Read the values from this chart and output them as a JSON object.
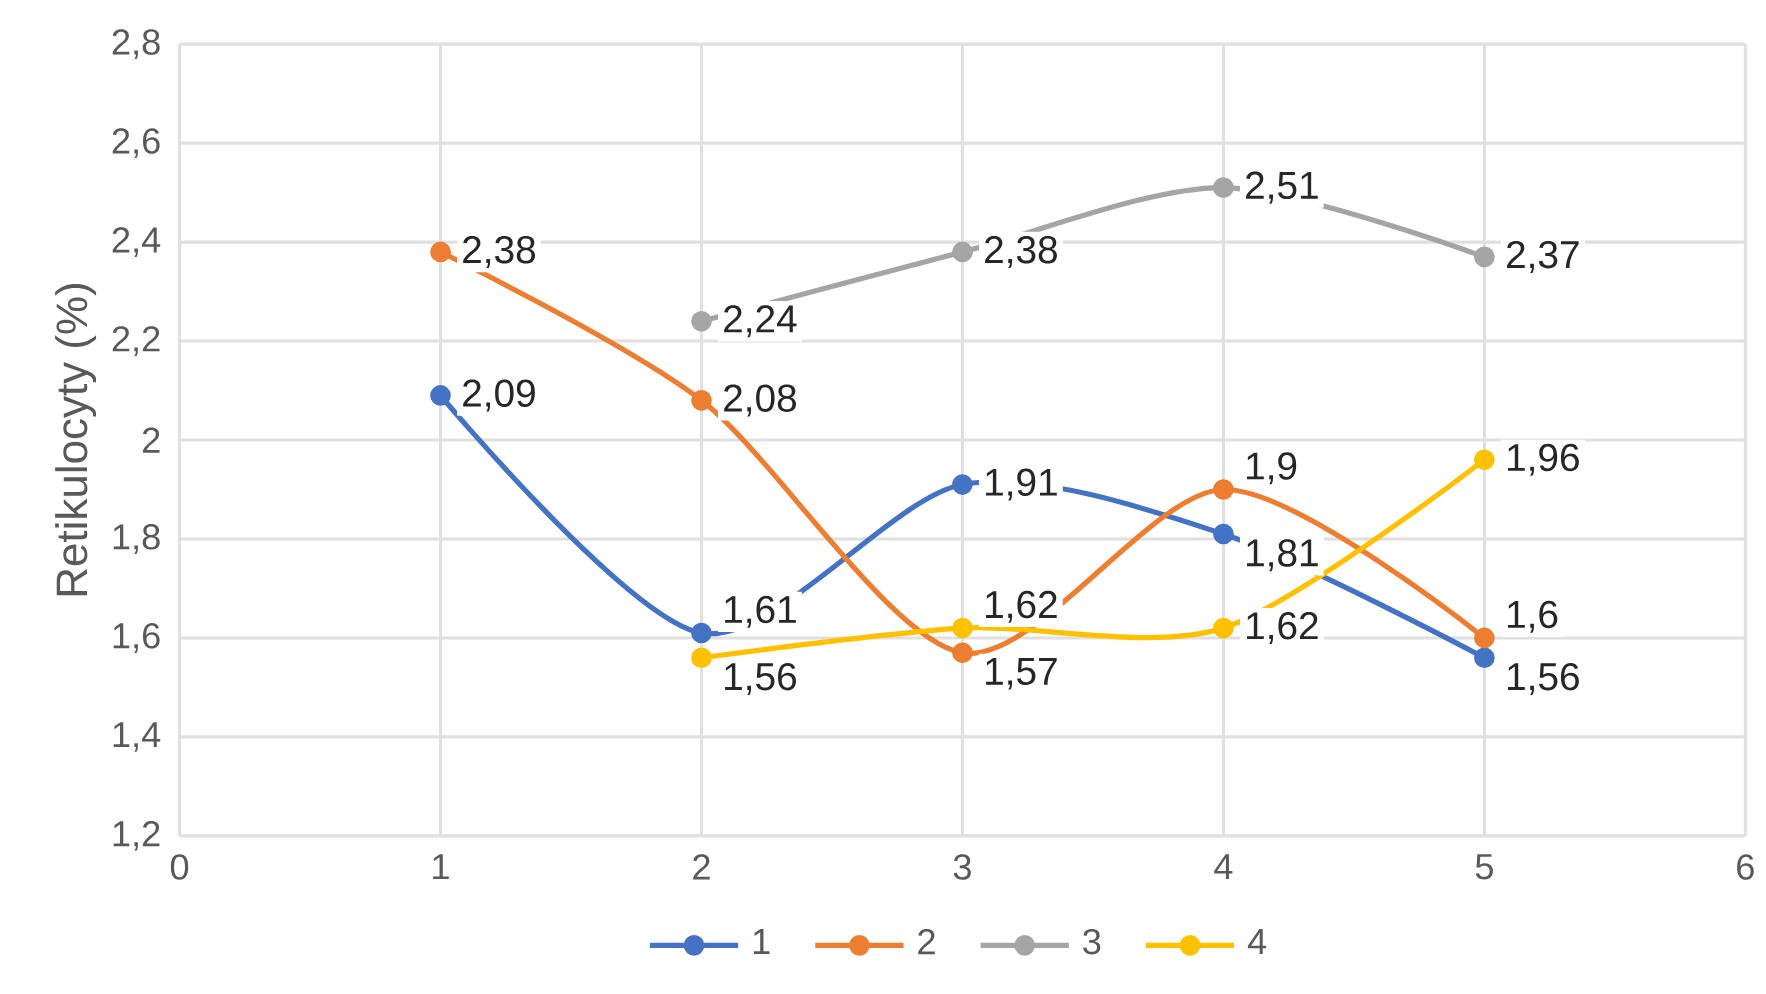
{
  "chart_data": {
    "type": "line",
    "ylabel": "Retikulocyty (%)",
    "xlim": [
      0,
      6
    ],
    "xticks": [
      0,
      1,
      2,
      3,
      4,
      5,
      6
    ],
    "ylim": [
      1.2,
      2.8
    ],
    "yticks": [
      {
        "value": 1.2,
        "label": "1,2"
      },
      {
        "value": 1.4,
        "label": "1,4"
      },
      {
        "value": 1.6,
        "label": "1,6"
      },
      {
        "value": 1.8,
        "label": "1,8"
      },
      {
        "value": 2,
        "label": "2"
      },
      {
        "value": 2.2,
        "label": "2,2"
      },
      {
        "value": 2.4,
        "label": "2,4"
      },
      {
        "value": 2.6,
        "label": "2,6"
      },
      {
        "value": 2.8,
        "label": "2,8"
      }
    ],
    "grid": true,
    "legend": "bottom",
    "marker": "circle",
    "line_style": "solid",
    "series": [
      {
        "name": "1",
        "color": "#4472c4",
        "x": [
          1,
          2,
          3,
          4,
          5
        ],
        "values": [
          2.09,
          1.61,
          1.91,
          1.81,
          1.56
        ],
        "value_labels": [
          "2,09",
          "1,61",
          "1,91",
          "1,81",
          "1,56"
        ]
      },
      {
        "name": "2",
        "color": "#ed7d31",
        "x": [
          1,
          2,
          3,
          4,
          5
        ],
        "values": [
          2.38,
          2.08,
          1.57,
          1.9,
          1.6
        ],
        "value_labels": [
          "2,38",
          "2,08",
          "1,57",
          "1,9",
          "1,6"
        ]
      },
      {
        "name": "3",
        "color": "#a5a5a5",
        "x": [
          2,
          3,
          4,
          5
        ],
        "values": [
          2.24,
          2.38,
          2.51,
          2.37
        ],
        "value_labels": [
          "2,24",
          "2,38",
          "2,51",
          "2,37"
        ]
      },
      {
        "name": "4",
        "color": "#ffc000",
        "x": [
          2,
          3,
          4,
          5
        ],
        "values": [
          1.56,
          1.62,
          1.62,
          1.96
        ],
        "value_labels": [
          "1,56",
          "1,62",
          "1,62",
          "1,96"
        ]
      }
    ]
  }
}
